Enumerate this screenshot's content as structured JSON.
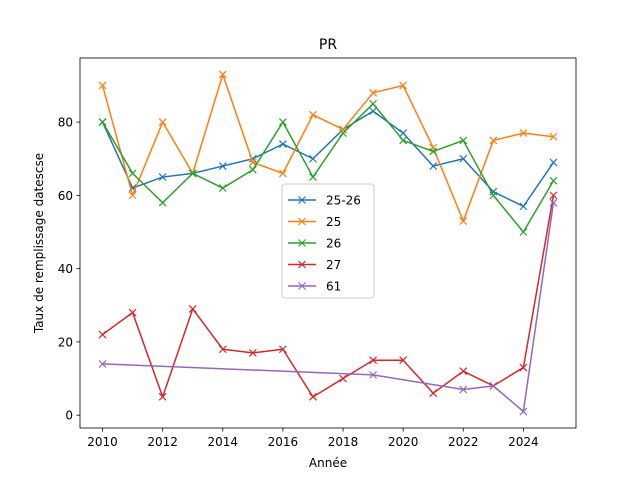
{
  "chart_data": {
    "type": "line",
    "title": "PR",
    "xlabel": "Année",
    "ylabel": "Taux de remplissage datescse",
    "xlim": [
      2009.25,
      2025.75
    ],
    "ylim": [
      -3.5,
      97.5
    ],
    "xticks": [
      2010,
      2012,
      2014,
      2016,
      2018,
      2020,
      2022,
      2024
    ],
    "yticks": [
      0,
      20,
      40,
      60,
      80
    ],
    "grid": false,
    "legend_position": "center",
    "marker": "x",
    "series": [
      {
        "name": "25-26",
        "color": "#1f77b4",
        "x": [
          2010,
          2011,
          2012,
          2013,
          2014,
          2015,
          2016,
          2017,
          2018,
          2019,
          2020,
          2021,
          2022,
          2023,
          2024,
          2025
        ],
        "values": [
          80,
          62,
          65,
          66,
          68,
          70,
          74,
          70,
          78,
          83,
          77,
          68,
          70,
          61,
          57,
          69
        ]
      },
      {
        "name": "25",
        "color": "#ff7f0e",
        "x": [
          2010,
          2011,
          2012,
          2013,
          2014,
          2015,
          2016,
          2017,
          2018,
          2019,
          2020,
          2021,
          2022,
          2023,
          2024,
          2025
        ],
        "values": [
          90,
          60,
          80,
          66,
          93,
          69,
          66,
          82,
          78,
          88,
          90,
          73,
          53,
          75,
          77,
          76
        ]
      },
      {
        "name": "26",
        "color": "#2ca02c",
        "x": [
          2010,
          2011,
          2012,
          2013,
          2014,
          2015,
          2016,
          2017,
          2018,
          2019,
          2020,
          2021,
          2022,
          2023,
          2024,
          2025
        ],
        "values": [
          80,
          66,
          58,
          66,
          62,
          67,
          80,
          65,
          77,
          85,
          75,
          72,
          75,
          60,
          50,
          64
        ]
      },
      {
        "name": "27",
        "color": "#d62728",
        "x": [
          2010,
          2011,
          2012,
          2013,
          2014,
          2015,
          2016,
          2017,
          2018,
          2019,
          2020,
          2021,
          2022,
          2023,
          2024,
          2025
        ],
        "values": [
          22,
          28,
          5,
          29,
          18,
          17,
          18,
          5,
          10,
          15,
          15,
          6,
          12,
          8,
          13,
          60
        ]
      },
      {
        "name": "61",
        "color": "#9467bd",
        "x": [
          2010,
          2019,
          2022,
          2023,
          2024,
          2025
        ],
        "values": [
          14,
          11,
          7,
          8,
          1,
          58
        ]
      }
    ]
  }
}
